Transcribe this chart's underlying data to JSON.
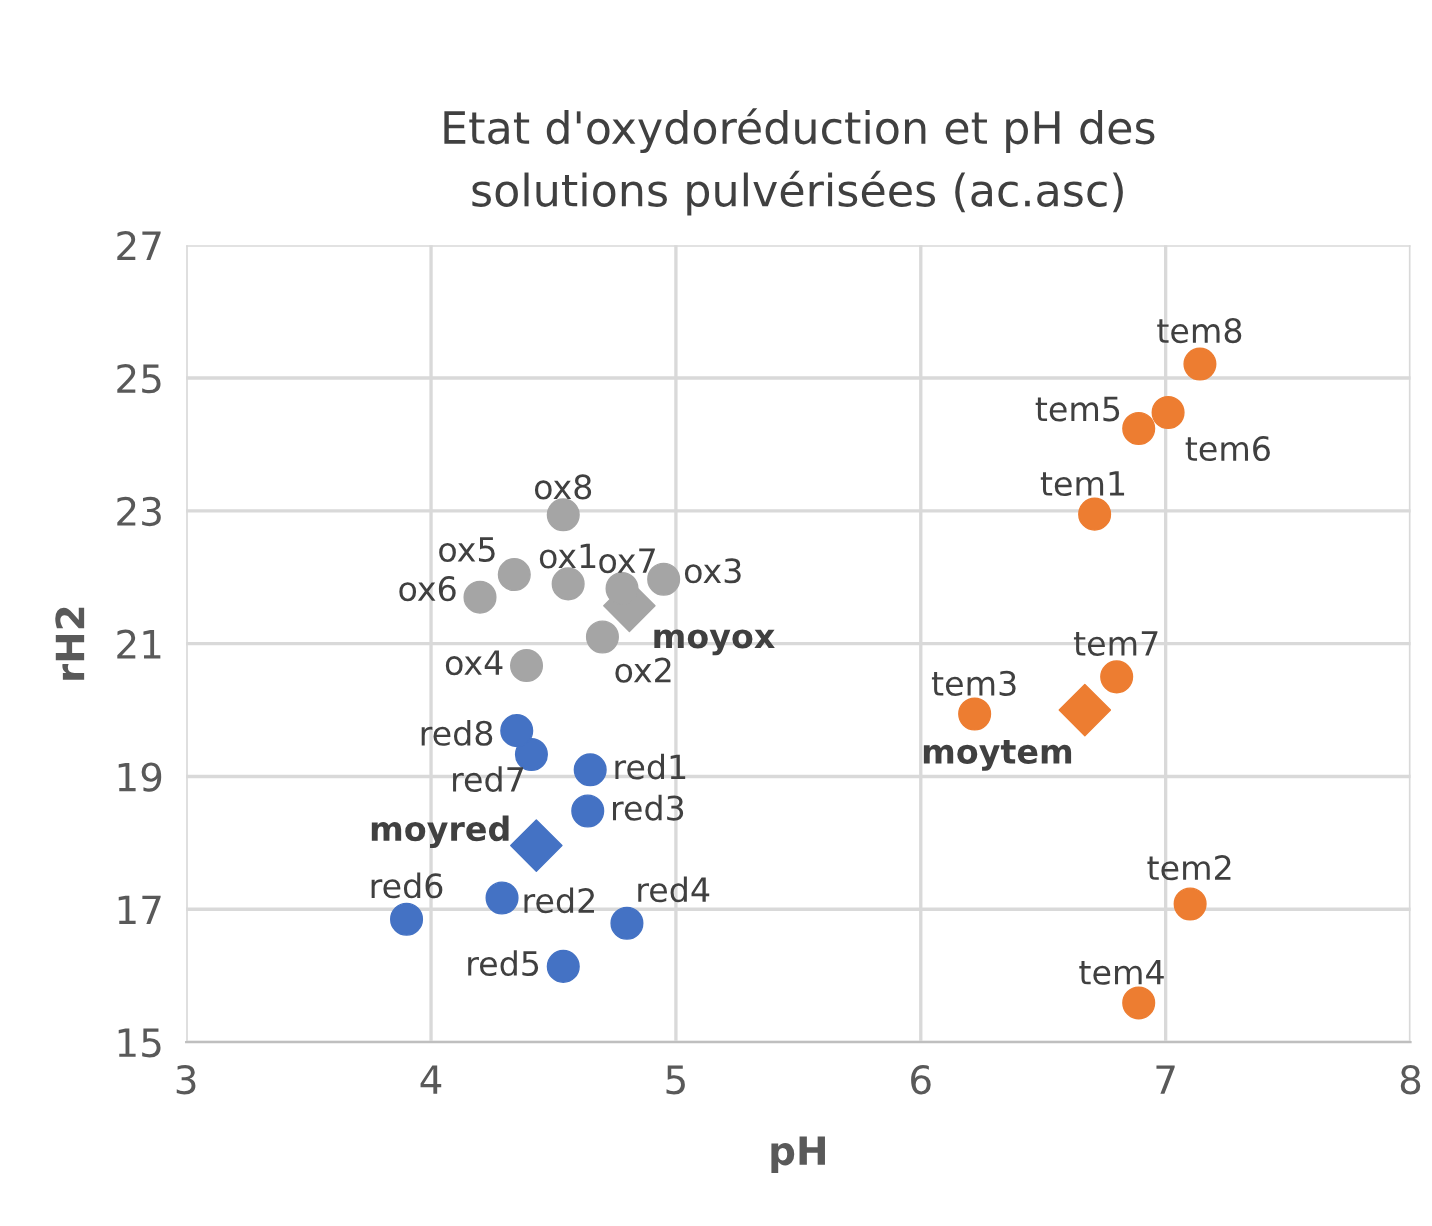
{
  "chart_data": {
    "type": "scatter",
    "title": "Etat d'oxydoréduction et pH des\nsolutions pulvérisées (ac.asc)",
    "xlabel": "pH",
    "ylabel": "rH2",
    "xlim": [
      3,
      8
    ],
    "ylim": [
      15,
      27
    ],
    "xticks": [
      3,
      4,
      5,
      6,
      7,
      8
    ],
    "yticks": [
      15,
      17,
      19,
      21,
      23,
      25,
      27
    ],
    "grid": true,
    "series": [
      {
        "color": "#a5a5a5",
        "marker": "circle",
        "x": [
          4.56,
          4.7,
          4.95,
          4.39,
          4.34,
          4.2,
          4.78,
          4.54
        ],
        "values": [
          21.9,
          21.1,
          21.97,
          20.67,
          22.04,
          21.7,
          21.83,
          22.94
        ]
      },
      {
        "color": "#4472c4",
        "marker": "circle",
        "x": [
          4.65,
          4.29,
          4.64,
          4.8,
          4.54,
          3.9,
          4.41,
          4.35
        ],
        "values": [
          19.1,
          17.17,
          18.48,
          16.79,
          16.14,
          16.85,
          19.33,
          19.69
        ]
      },
      {
        "color": "#ed7d31",
        "marker": "circle",
        "x": [
          6.71,
          7.1,
          6.22,
          6.89,
          6.89,
          7.01,
          6.8,
          7.14
        ],
        "values": [
          22.95,
          17.08,
          19.94,
          15.59,
          24.24,
          24.48,
          20.5,
          25.21
        ]
      },
      {
        "color": "#a5a5a5",
        "marker": "diamond",
        "x": [
          4.81
        ],
        "values": [
          21.57
        ]
      },
      {
        "color": "#4472c4",
        "marker": "diamond",
        "x": [
          4.43
        ],
        "values": [
          17.96
        ]
      },
      {
        "color": "#ed7d31",
        "marker": "diamond",
        "x": [
          6.67
        ],
        "values": [
          20.0
        ]
      }
    ],
    "annotations": [
      {
        "text": "ox1",
        "x": 4.56,
        "y": 21.9
      },
      {
        "text": "ox2",
        "x": 4.7,
        "y": 21.1
      },
      {
        "text": "ox3",
        "x": 4.95,
        "y": 21.97
      },
      {
        "text": "ox4",
        "x": 4.39,
        "y": 20.67
      },
      {
        "text": "ox5",
        "x": 4.34,
        "y": 22.04
      },
      {
        "text": "ox6",
        "x": 4.2,
        "y": 21.7
      },
      {
        "text": "ox7",
        "x": 4.78,
        "y": 21.83
      },
      {
        "text": "ox8",
        "x": 4.54,
        "y": 22.94
      },
      {
        "text": "red1",
        "x": 4.65,
        "y": 19.1
      },
      {
        "text": "red2",
        "x": 4.29,
        "y": 17.17
      },
      {
        "text": "red3",
        "x": 4.64,
        "y": 18.48
      },
      {
        "text": "red4",
        "x": 4.8,
        "y": 16.79
      },
      {
        "text": "red5",
        "x": 4.54,
        "y": 16.14
      },
      {
        "text": "red6",
        "x": 3.9,
        "y": 16.85
      },
      {
        "text": "red7",
        "x": 4.41,
        "y": 19.33
      },
      {
        "text": "red8",
        "x": 4.35,
        "y": 19.69
      },
      {
        "text": "tem1",
        "x": 6.71,
        "y": 22.95
      },
      {
        "text": "tem2",
        "x": 7.1,
        "y": 17.08
      },
      {
        "text": "tem3",
        "x": 6.22,
        "y": 19.94
      },
      {
        "text": "tem4",
        "x": 6.89,
        "y": 15.59
      },
      {
        "text": "tem5",
        "x": 6.89,
        "y": 24.24
      },
      {
        "text": "tem6",
        "x": 7.01,
        "y": 24.48
      },
      {
        "text": "tem7",
        "x": 6.8,
        "y": 20.5
      },
      {
        "text": "tem8",
        "x": 7.14,
        "y": 25.21
      },
      {
        "text": "moyox",
        "x": 4.81,
        "y": 21.57
      },
      {
        "text": "moyred",
        "x": 4.43,
        "y": 17.96
      },
      {
        "text": "moytem",
        "x": 6.67,
        "y": 20.0
      }
    ]
  }
}
